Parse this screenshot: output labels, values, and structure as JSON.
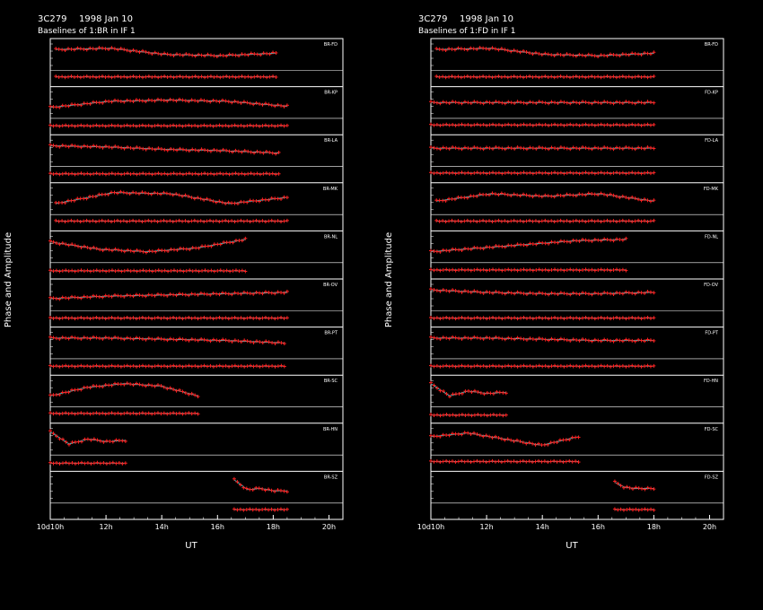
{
  "chart_data": {
    "type": "line",
    "colors": {
      "background": "#000000",
      "frame": "#ffffff",
      "points": "#ff2020",
      "model": "#33cccc"
    },
    "xlabel": "UT",
    "ylabel": "Phase and Amplitude",
    "x_ticks": [
      "10d10h",
      "12h",
      "14h",
      "16h",
      "18h",
      "20h"
    ],
    "x_tick_hours": [
      10,
      12,
      14,
      16,
      18,
      20
    ],
    "xlim": [
      10,
      20.5
    ],
    "grid": false,
    "panels": [
      {
        "source": "3C279",
        "date": "1998 Jan 10",
        "subtitle": "Baselines of 1:BR in IF 1",
        "baselines": [
          {
            "name": "BR-FD",
            "span": [
              10.2,
              18.1
            ],
            "phase_trend": [
              0.7,
              0.75,
              0.5,
              0.45,
              0.55
            ],
            "amp_level": 0.6
          },
          {
            "name": "BR-KP",
            "span": [
              10.0,
              18.5
            ],
            "phase_trend": [
              0.3,
              0.55,
              0.6,
              0.55,
              0.35
            ],
            "amp_level": 0.55
          },
          {
            "name": "BR-LA",
            "span": [
              10.0,
              18.2
            ],
            "phase_trend": [
              0.7,
              0.65,
              0.55,
              0.5,
              0.4
            ],
            "amp_level": 0.55
          },
          {
            "name": "BR-MK",
            "span": [
              10.2,
              18.5
            ],
            "phase_trend": [
              0.3,
              0.75,
              0.7,
              0.3,
              0.55
            ],
            "amp_level": 0.6
          },
          {
            "name": "BR-NL",
            "span": [
              10.0,
              17.0
            ],
            "phase_trend": [
              0.7,
              0.4,
              0.3,
              0.45,
              0.8
            ],
            "amp_level": 0.5
          },
          {
            "name": "BR-OV",
            "span": [
              10.0,
              18.5
            ],
            "phase_trend": [
              0.35,
              0.45,
              0.5,
              0.55,
              0.6
            ],
            "amp_level": 0.55
          },
          {
            "name": "BR-PT",
            "span": [
              10.0,
              18.4
            ],
            "phase_trend": [
              0.7,
              0.7,
              0.65,
              0.6,
              0.5
            ],
            "amp_level": 0.55
          },
          {
            "name": "BR-SC",
            "span": [
              10.0,
              15.3
            ],
            "phase_trend": [
              0.3,
              0.65,
              0.8,
              0.7,
              0.3
            ],
            "amp_level": 0.6
          },
          {
            "name": "BR-HN",
            "span": [
              10.0,
              12.7
            ],
            "phase_trend": [
              0.8,
              0.3,
              0.5,
              0.4,
              0.45
            ],
            "amp_level": 0.5
          },
          {
            "name": "BR-SZ",
            "span": [
              16.6,
              18.5
            ],
            "phase_trend": [
              0.8,
              0.4,
              0.45,
              0.35,
              0.35
            ],
            "amp_level": 0.6
          }
        ]
      },
      {
        "source": "3C279",
        "date": "1998 Jan 10",
        "subtitle": "Baselines of 1:FD in IF 1",
        "baselines": [
          {
            "name": "BR-FD",
            "span": [
              10.2,
              18.0
            ],
            "phase_trend": [
              0.7,
              0.75,
              0.5,
              0.45,
              0.55
            ],
            "amp_level": 0.6
          },
          {
            "name": "FD-KP",
            "span": [
              10.0,
              18.0
            ],
            "phase_trend": [
              0.5,
              0.5,
              0.5,
              0.5,
              0.5
            ],
            "amp_level": 0.6
          },
          {
            "name": "FD-LA",
            "span": [
              10.0,
              18.0
            ],
            "phase_trend": [
              0.6,
              0.6,
              0.6,
              0.6,
              0.6
            ],
            "amp_level": 0.6
          },
          {
            "name": "FD-MK",
            "span": [
              10.2,
              18.0
            ],
            "phase_trend": [
              0.4,
              0.7,
              0.6,
              0.7,
              0.4
            ],
            "amp_level": 0.6
          },
          {
            "name": "FD-NL",
            "span": [
              10.0,
              17.0
            ],
            "phase_trend": [
              0.3,
              0.45,
              0.6,
              0.75,
              0.8
            ],
            "amp_level": 0.55
          },
          {
            "name": "FD-OV",
            "span": [
              10.0,
              18.0
            ],
            "phase_trend": [
              0.7,
              0.6,
              0.55,
              0.55,
              0.6
            ],
            "amp_level": 0.55
          },
          {
            "name": "FD-PT",
            "span": [
              10.0,
              18.0
            ],
            "phase_trend": [
              0.7,
              0.7,
              0.65,
              0.6,
              0.6
            ],
            "amp_level": 0.55
          },
          {
            "name": "FD-HN",
            "span": [
              10.0,
              12.7
            ],
            "phase_trend": [
              0.8,
              0.3,
              0.5,
              0.4,
              0.45
            ],
            "amp_level": 0.5
          },
          {
            "name": "FD-SC",
            "span": [
              10.0,
              15.3
            ],
            "phase_trend": [
              0.6,
              0.75,
              0.5,
              0.25,
              0.6
            ],
            "amp_level": 0.6
          },
          {
            "name": "FD-SZ",
            "span": [
              16.6,
              18.0
            ],
            "phase_trend": [
              0.7,
              0.5,
              0.45,
              0.45,
              0.45
            ],
            "amp_level": 0.6
          }
        ]
      }
    ]
  }
}
